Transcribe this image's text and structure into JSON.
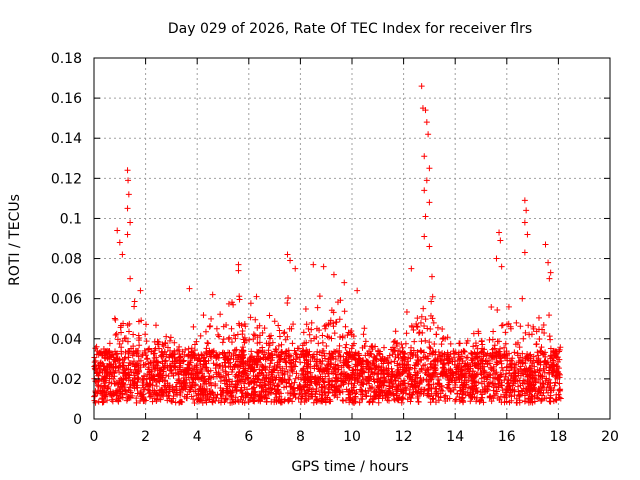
{
  "chart_data": {
    "type": "scatter",
    "title": "Day 029 of 2026, Rate Of TEC Index for receiver flrs",
    "xlabel": "GPS time / hours",
    "ylabel": "ROTI / TECUs",
    "xlim": [
      0,
      20
    ],
    "ylim": [
      0,
      0.18
    ],
    "xticks": [
      "0",
      "2",
      "4",
      "6",
      "8",
      "10",
      "12",
      "14",
      "16",
      "18",
      "20"
    ],
    "yticks": [
      "0",
      "0.02",
      "0.04",
      "0.06",
      "0.08",
      "0.1",
      "0.12",
      "0.14",
      "0.16",
      "0.18"
    ],
    "grid": true,
    "marker": "+",
    "color": "#ff0000",
    "series": [
      {
        "name": "ROTI",
        "data_range_hours": [
          0,
          18.1
        ],
        "baseline_roti": 0.018,
        "notable_points": [
          {
            "x": 0.1,
            "y": 0.036
          },
          {
            "x": 0.9,
            "y": 0.094
          },
          {
            "x": 1.0,
            "y": 0.088
          },
          {
            "x": 1.1,
            "y": 0.082
          },
          {
            "x": 1.3,
            "y": 0.124
          },
          {
            "x": 1.32,
            "y": 0.119
          },
          {
            "x": 1.35,
            "y": 0.112
          },
          {
            "x": 1.3,
            "y": 0.105
          },
          {
            "x": 1.4,
            "y": 0.098
          },
          {
            "x": 1.3,
            "y": 0.092
          },
          {
            "x": 1.4,
            "y": 0.07
          },
          {
            "x": 1.8,
            "y": 0.064
          },
          {
            "x": 3.7,
            "y": 0.065
          },
          {
            "x": 4.6,
            "y": 0.062
          },
          {
            "x": 5.6,
            "y": 0.077
          },
          {
            "x": 5.6,
            "y": 0.074
          },
          {
            "x": 6.3,
            "y": 0.061
          },
          {
            "x": 7.5,
            "y": 0.082
          },
          {
            "x": 7.6,
            "y": 0.079
          },
          {
            "x": 7.8,
            "y": 0.075
          },
          {
            "x": 8.5,
            "y": 0.077
          },
          {
            "x": 8.9,
            "y": 0.076
          },
          {
            "x": 9.3,
            "y": 0.072
          },
          {
            "x": 9.7,
            "y": 0.068
          },
          {
            "x": 10.2,
            "y": 0.064
          },
          {
            "x": 12.3,
            "y": 0.075
          },
          {
            "x": 12.7,
            "y": 0.166
          },
          {
            "x": 12.75,
            "y": 0.155
          },
          {
            "x": 12.85,
            "y": 0.154
          },
          {
            "x": 12.9,
            "y": 0.148
          },
          {
            "x": 12.95,
            "y": 0.142
          },
          {
            "x": 12.8,
            "y": 0.131
          },
          {
            "x": 13.0,
            "y": 0.125
          },
          {
            "x": 12.9,
            "y": 0.119
          },
          {
            "x": 12.8,
            "y": 0.114
          },
          {
            "x": 13.0,
            "y": 0.108
          },
          {
            "x": 12.85,
            "y": 0.101
          },
          {
            "x": 12.8,
            "y": 0.091
          },
          {
            "x": 13.0,
            "y": 0.086
          },
          {
            "x": 13.1,
            "y": 0.071
          },
          {
            "x": 15.7,
            "y": 0.093
          },
          {
            "x": 15.75,
            "y": 0.089
          },
          {
            "x": 15.6,
            "y": 0.08
          },
          {
            "x": 15.8,
            "y": 0.076
          },
          {
            "x": 16.7,
            "y": 0.109
          },
          {
            "x": 16.75,
            "y": 0.104
          },
          {
            "x": 16.7,
            "y": 0.098
          },
          {
            "x": 16.8,
            "y": 0.092
          },
          {
            "x": 16.7,
            "y": 0.083
          },
          {
            "x": 16.6,
            "y": 0.06
          },
          {
            "x": 17.5,
            "y": 0.087
          },
          {
            "x": 17.6,
            "y": 0.078
          },
          {
            "x": 17.7,
            "y": 0.073
          },
          {
            "x": 17.65,
            "y": 0.07
          }
        ],
        "envelope_hours": [
          0,
          0.5,
          1,
          1.5,
          2,
          2.5,
          3,
          3.5,
          4,
          4.5,
          5,
          5.5,
          6,
          6.5,
          7,
          7.5,
          8,
          8.5,
          9,
          9.5,
          10,
          10.5,
          11,
          11.5,
          12,
          12.5,
          13,
          13.5,
          14,
          14.5,
          15,
          15.5,
          16,
          16.5,
          17,
          17.5,
          18
        ],
        "envelope_roti": [
          0.04,
          0.036,
          0.06,
          0.063,
          0.06,
          0.045,
          0.042,
          0.04,
          0.05,
          0.058,
          0.06,
          0.062,
          0.06,
          0.05,
          0.055,
          0.065,
          0.058,
          0.062,
          0.07,
          0.066,
          0.052,
          0.05,
          0.04,
          0.04,
          0.05,
          0.063,
          0.068,
          0.055,
          0.04,
          0.045,
          0.05,
          0.058,
          0.06,
          0.062,
          0.058,
          0.06,
          0.04
        ]
      }
    ]
  }
}
